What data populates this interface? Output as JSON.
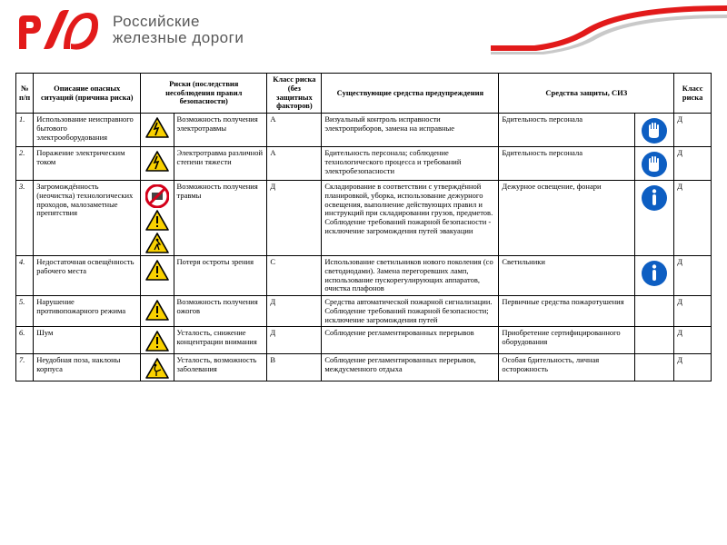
{
  "brand": {
    "logo_color": "#e21a1a",
    "line1": "Российские",
    "line2": "железные дороги",
    "swoosh_color": "#e21a1a",
    "swoosh_grey": "#c9c9c9"
  },
  "table": {
    "columns": {
      "num": "№ п/п",
      "desc": "Описание опасных ситуаций (причина риска)",
      "risk": "Риски (последствия несоблюдения правил безопасности)",
      "class1": "Класс риска (без защитных факторов)",
      "warn": "Существующие средства предупреждения",
      "prot": "Средства защиты, СИЗ",
      "class2": "Класс риска"
    },
    "colors": {
      "hazard_yellow": "#f9d100",
      "hazard_border": "#000000",
      "prohibit_red": "#d4001a",
      "mandatory_blue": "#0d5ec2",
      "mandatory_white": "#ffffff"
    },
    "rows": [
      {
        "n": "1.",
        "desc": "Использование неисправного бытового электрооборудования",
        "risk_icons": [
          "electric"
        ],
        "risk_text": "Возможность получения электротравмы",
        "class1": "А",
        "warn": "Визуальный контроль исправности электроприборов, замена на исправные",
        "prot_text": "Бдительность персонала",
        "prot_icons": [
          "gloves"
        ],
        "class2": "Д"
      },
      {
        "n": "2.",
        "desc": "Поражение электрическим током",
        "risk_icons": [
          "electric"
        ],
        "risk_text": "Электротравма различной степени тяжести",
        "class1": "А",
        "warn": "Бдительность персонала; соблюдение технологического процесса и требований электробезопасности",
        "prot_text": "Бдительность персонала",
        "prot_icons": [
          "gloves"
        ],
        "class2": "Д"
      },
      {
        "n": "3.",
        "desc": "Загромождённость (неочистка) технологических проходов, малозаметные препятствия",
        "risk_icons": [
          "prohibit",
          "generic",
          "slip"
        ],
        "risk_text": "Возможность получения травмы",
        "class1": "Д",
        "warn": "Складирование в соответствии с утверждённой планировкой, уборка, использование дежурного освещения, выполнение действующих правил и инструкций при складировании грузов, предметов. Соблюдение требований пожарной безопасности - исключение загромождения путей эвакуации",
        "prot_text": "Дежурное освещение, фонари",
        "prot_icons": [
          "info"
        ],
        "class2": "Д"
      },
      {
        "n": "4.",
        "desc": "Недостаточная освещённость рабочего места",
        "risk_icons": [
          "generic"
        ],
        "risk_text": "Потеря остроты зрения",
        "class1": "С",
        "warn": "Использование светильников нового поколения (со светодиодами). Замена перегоревших ламп, использование пускорегулирующих аппаратов, очистка плафонов",
        "prot_text": "Светильники",
        "prot_icons": [
          "info"
        ],
        "class2": "Д"
      },
      {
        "n": "5.",
        "desc": "Нарушение противопожарного режима",
        "risk_icons": [
          "generic"
        ],
        "risk_text": "Возможность получения ожогов",
        "class1": "Д",
        "warn": "Средства автоматической пожарной сигнализации. Соблюдение требований пожарной безопасности; исключение загромождения путей",
        "prot_text": "Первичные средства пожаротушения",
        "prot_icons": [],
        "class2": "Д"
      },
      {
        "n": "6.",
        "desc": "Шум",
        "risk_icons": [
          "generic"
        ],
        "risk_text": "Усталость, снижение концентрации внимания",
        "class1": "Д",
        "warn": "Соблюдение регламентированных перерывов",
        "prot_text": "Приобретение сертифицированного оборудования",
        "prot_icons": [],
        "class2": "Д"
      },
      {
        "n": "7.",
        "desc": "Неудобная поза, наклоны корпуса",
        "risk_icons": [
          "ergon"
        ],
        "risk_text": "Усталость, возможность заболевания",
        "class1": "В",
        "warn": "Соблюдение регламентированных перерывов, междусменного отдыха",
        "prot_text": "Особая бдительность, личная осторожность",
        "prot_icons": [],
        "class2": "Д"
      }
    ]
  }
}
